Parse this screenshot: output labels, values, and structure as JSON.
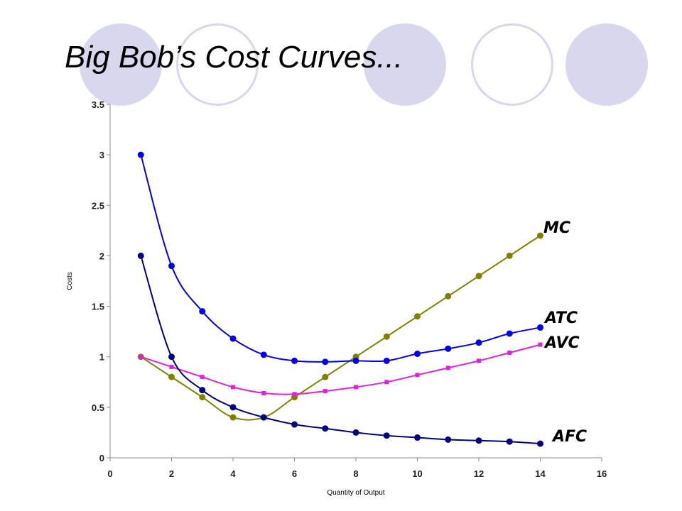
{
  "slide": {
    "title": "Big Bob’s Cost Curves...",
    "decor_color": "#d7d7ee"
  },
  "chart_data": {
    "type": "line",
    "title": "",
    "xlabel": "Quantity of Output",
    "ylabel": "Costs",
    "xlim": [
      0,
      16
    ],
    "ylim": [
      0,
      3.5
    ],
    "xticks": [
      0,
      2,
      4,
      6,
      8,
      10,
      12,
      14,
      16
    ],
    "yticks": [
      0,
      0.5,
      1,
      1.5,
      2,
      2.5,
      3,
      3.5
    ],
    "grid": false,
    "legend": "none (curve labels at right end of each series)",
    "series": [
      {
        "name": "MC",
        "color": "#808000",
        "marker": "circle",
        "x": [
          1,
          2,
          3,
          4,
          5,
          6,
          7,
          8,
          9,
          10,
          11,
          12,
          13,
          14
        ],
        "y": [
          1.0,
          0.8,
          0.6,
          0.4,
          0.4,
          0.6,
          0.8,
          1.0,
          1.2,
          1.4,
          1.6,
          1.8,
          2.0,
          2.2
        ]
      },
      {
        "name": "ATC",
        "color": "#0000ee",
        "marker": "circle",
        "x": [
          1,
          2,
          3,
          4,
          5,
          6,
          7,
          8,
          9,
          10,
          11,
          12,
          13,
          14
        ],
        "y": [
          3.0,
          1.9,
          1.45,
          1.18,
          1.02,
          0.96,
          0.95,
          0.96,
          0.96,
          1.03,
          1.08,
          1.14,
          1.23,
          1.29
        ]
      },
      {
        "name": "AVC",
        "color": "#e020e0",
        "marker": "square",
        "x": [
          1,
          2,
          3,
          4,
          5,
          6,
          7,
          8,
          9,
          10,
          11,
          12,
          13,
          14
        ],
        "y": [
          1.0,
          0.9,
          0.8,
          0.7,
          0.64,
          0.63,
          0.66,
          0.7,
          0.75,
          0.82,
          0.89,
          0.96,
          1.04,
          1.12
        ]
      },
      {
        "name": "AFC",
        "color": "#000080",
        "marker": "circle",
        "x": [
          1,
          2,
          3,
          4,
          5,
          6,
          7,
          8,
          9,
          10,
          11,
          12,
          13,
          14
        ],
        "y": [
          2.0,
          1.0,
          0.67,
          0.5,
          0.4,
          0.33,
          0.29,
          0.25,
          0.22,
          0.2,
          0.18,
          0.17,
          0.16,
          0.14
        ]
      }
    ]
  }
}
